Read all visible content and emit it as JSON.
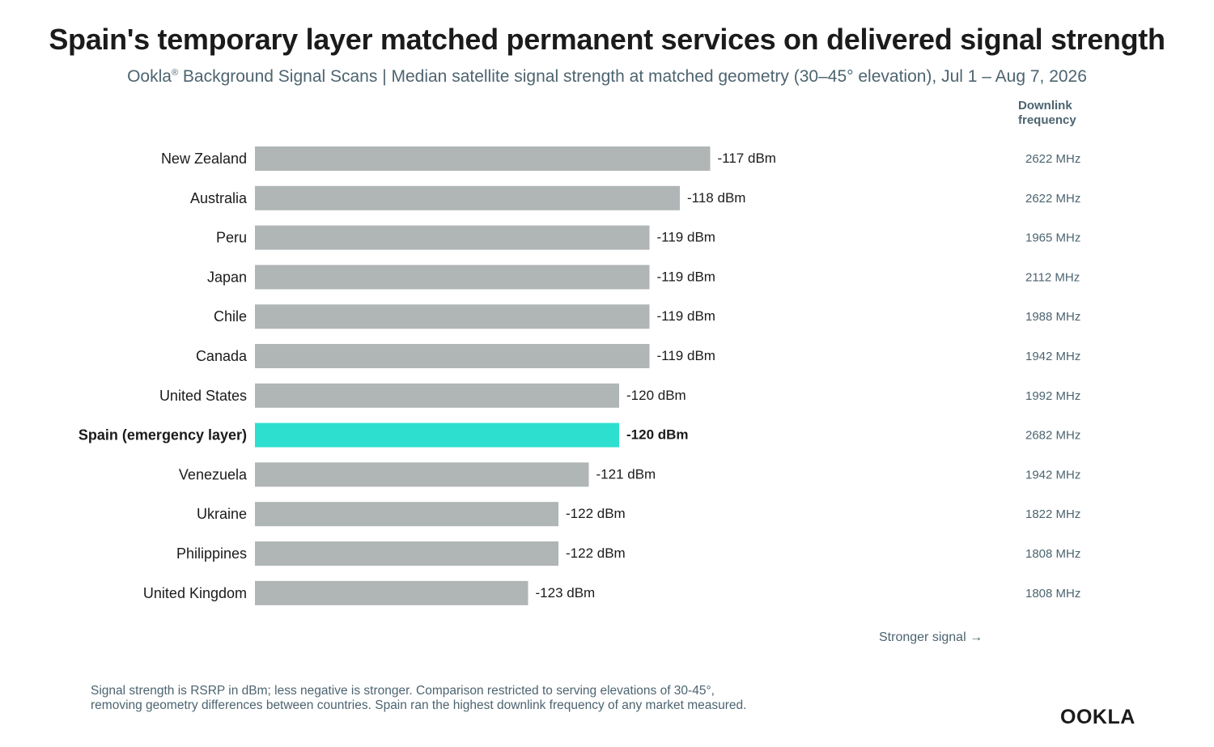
{
  "header": {
    "title": "Spain's temporary layer matched permanent services on delivered signal strength",
    "subtitle_brand": "Ookla",
    "subtitle_reg": "®",
    "subtitle_rest": " Background Signal Scans | Median satellite signal strength at matched geometry (30–45° elevation), Jul 1 – Aug 7, 2026"
  },
  "freq_header": "Downlink frequency",
  "stronger_label": "Stronger signal →",
  "footnote": {
    "line1": "Signal strength is RSRP in dBm; less negative is stronger. Comparison restricted to serving elevations of 30-45°,",
    "line2": "removing geometry differences between countries. Spain ran the highest downlink frequency of any market measured."
  },
  "logo": "OOKLA",
  "colors": {
    "bar": "#b0b5b6",
    "highlight": "#2ddfce",
    "text": "#1b1b1b",
    "muted": "#4d6470"
  },
  "chart_data": {
    "type": "bar",
    "orientation": "horizontal",
    "unit": "dBm",
    "axis_min": -132,
    "categories": [
      "New Zealand",
      "Australia",
      "Peru",
      "Japan",
      "Chile",
      "Canada",
      "United States",
      "Spain (emergency layer)",
      "Venezuela",
      "Ukraine",
      "Philippines",
      "United Kingdom"
    ],
    "values": [
      -117,
      -118,
      -119,
      -119,
      -119,
      -119,
      -120,
      -120,
      -121,
      -122,
      -122,
      -123
    ],
    "value_labels": [
      "-117 dBm",
      "-118 dBm",
      "-119 dBm",
      "-119 dBm",
      "-119 dBm",
      "-119 dBm",
      "-120 dBm",
      "-120 dBm",
      "-121 dBm",
      "-122 dBm",
      "-122 dBm",
      "-123 dBm"
    ],
    "frequencies": [
      "2622 MHz",
      "2622 MHz",
      "1965 MHz",
      "2112 MHz",
      "1988 MHz",
      "1942 MHz",
      "1992 MHz",
      "2682 MHz",
      "1942 MHz",
      "1822 MHz",
      "1808 MHz",
      "1808 MHz"
    ],
    "highlight": "Spain (emergency layer)"
  }
}
